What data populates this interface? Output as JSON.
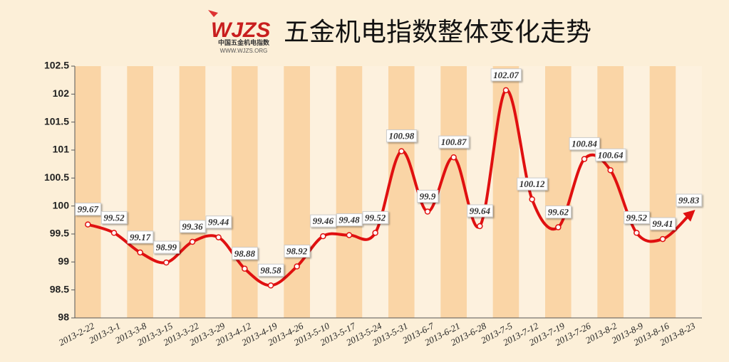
{
  "header": {
    "logo": "WJZS",
    "logo_subtitle": "中国五金机电指数",
    "logo_url": "WWW.WJZS.ORG"
  },
  "chart_data": {
    "type": "line",
    "title": "五金机电指数整体变化走势",
    "categories": [
      "2013-2-22",
      "2013-3-1",
      "2013-3-8",
      "2013-3-15",
      "2013-3-22",
      "2013-3-29",
      "2013-4-12",
      "2013-4-19",
      "2013-4-26",
      "2013-5-10",
      "2013-5-17",
      "2013-5-24",
      "2013-5-31",
      "2013-6-7",
      "2013-6-21",
      "2013-6-28",
      "2013-7-5",
      "2013-7-12",
      "2013-7-19",
      "2013-7-26",
      "2013-8-2",
      "2013-8-9",
      "2013-8-16",
      "2013-8-23"
    ],
    "values": [
      99.67,
      99.52,
      99.17,
      98.99,
      99.36,
      99.44,
      98.88,
      98.58,
      98.92,
      99.46,
      99.48,
      99.52,
      100.98,
      99.9,
      100.87,
      99.64,
      102.07,
      100.12,
      99.62,
      100.84,
      100.64,
      99.52,
      99.41,
      99.83
    ],
    "color": "#e01010",
    "band_colors": [
      "#fad5a6",
      "#fdf1de"
    ],
    "ylim": [
      98,
      102.5
    ],
    "yticks": [
      98,
      98.5,
      99,
      99.5,
      100,
      100.5,
      101,
      101.5,
      102,
      102.5
    ]
  }
}
